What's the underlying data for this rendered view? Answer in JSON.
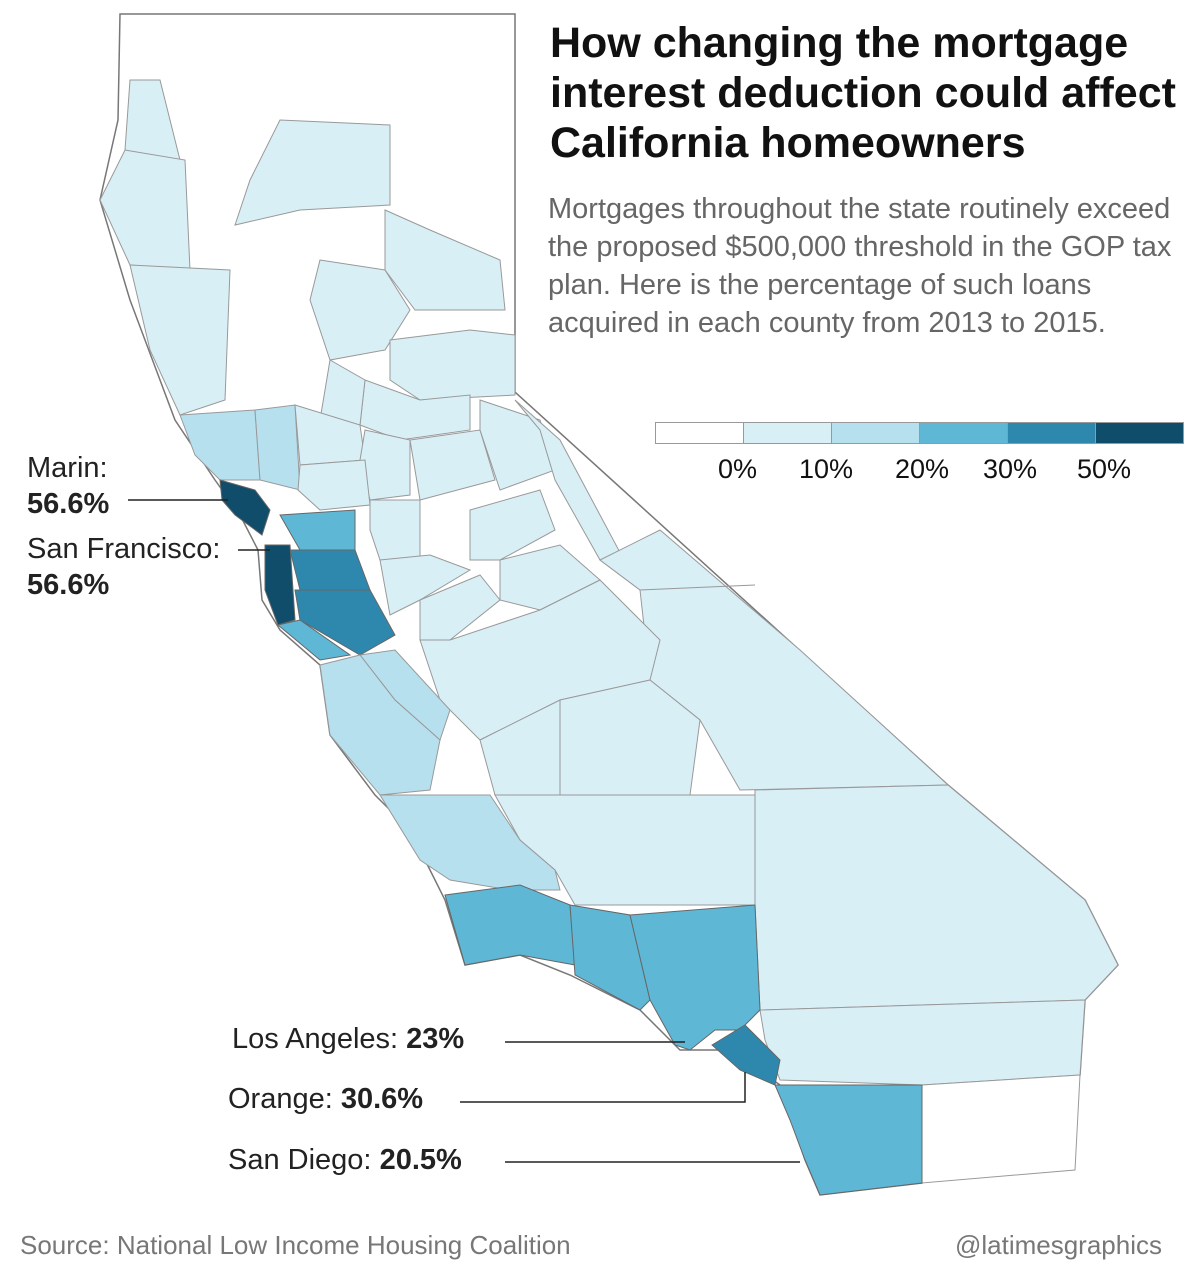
{
  "title": "How changing the mortgage interest deduction could affect California homeowners",
  "subtitle": "Mortgages throughout the state routinely exceed the proposed $500,000 threshold in the GOP tax plan. Here is the percentage of such loans acquired in each county from 2013 to 2015.",
  "legend": {
    "colors": [
      "#ffffff",
      "#d9eff6",
      "#b7e0ee",
      "#5fb7d6",
      "#2e88ae",
      "#0f4d6b"
    ],
    "labels": [
      "0%",
      "10%",
      "20%",
      "30%",
      "50%"
    ]
  },
  "callouts": {
    "marin": {
      "name": "Marin:",
      "value": "56.6%"
    },
    "san_francisco": {
      "name": "San Francisco:",
      "value": "56.6%"
    },
    "los_angeles": {
      "name": "Los Angeles:",
      "value": "23%"
    },
    "orange": {
      "name": "Orange:",
      "value": "30.6%"
    },
    "san_diego": {
      "name": "San Diego:",
      "value": "20.5%"
    }
  },
  "footer": {
    "source": "Source: National Low Income Housing Coalition",
    "credit": "@latimesgraphics"
  }
}
